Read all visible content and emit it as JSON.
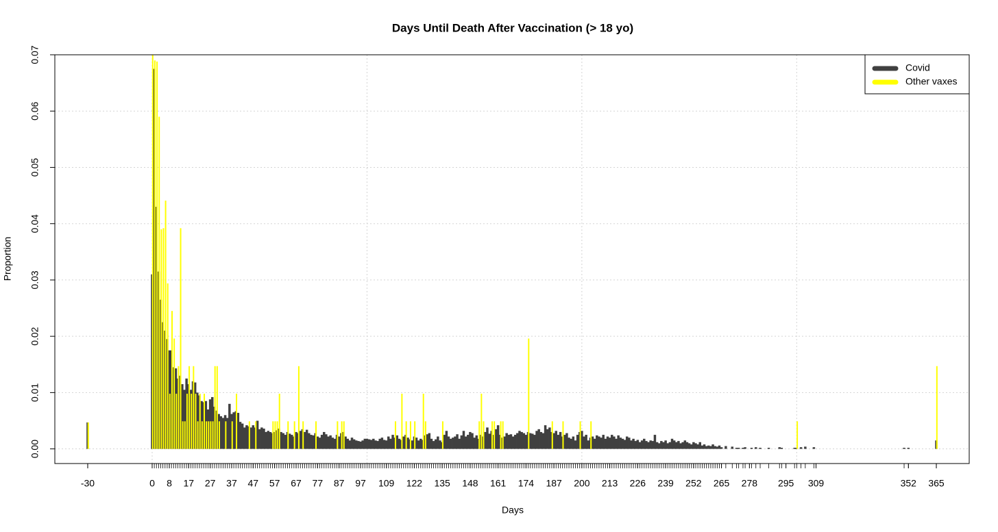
{
  "chart_data": {
    "type": "bar",
    "title": "Days Until Death After Vaccination (> 18 yo)",
    "x_label": "Days",
    "y_label": "Proportion",
    "xlim": [
      -45.3,
      380.3
    ],
    "ylim": [
      -0.0026,
      0.07
    ],
    "xticks": [
      -30,
      0,
      8,
      17,
      27,
      37,
      47,
      57,
      67,
      77,
      87,
      97,
      109,
      122,
      135,
      148,
      161,
      174,
      187,
      200,
      213,
      226,
      239,
      252,
      265,
      278,
      295,
      309,
      352,
      365
    ],
    "yticks": [
      {
        "value": 0,
        "label": "0.00"
      },
      {
        "value": 0.01,
        "label": "0.01"
      },
      {
        "value": 0.02,
        "label": "0.02"
      },
      {
        "value": 0.03,
        "label": "0.03"
      },
      {
        "value": 0.04,
        "label": "0.04"
      },
      {
        "value": 0.05,
        "label": "0.05"
      },
      {
        "value": 0.06,
        "label": "0.06"
      },
      {
        "value": 0.07,
        "label": "0.07"
      }
    ],
    "xgrid": [
      0,
      100,
      200,
      300
    ],
    "grid": true,
    "legend": "top-right",
    "series": [
      {
        "name": "Covid",
        "color": "#404040",
        "x": [
          -30,
          0,
          1,
          2,
          3,
          4,
          5,
          6,
          7,
          8,
          9,
          10,
          11,
          12,
          13,
          14,
          15,
          16,
          17,
          18,
          19,
          20,
          21,
          22,
          23,
          24,
          25,
          26,
          27,
          28,
          29,
          30,
          31,
          32,
          33,
          34,
          35,
          36,
          37,
          38,
          39,
          40,
          41,
          42,
          43,
          44,
          45,
          46,
          47,
          48,
          49,
          50,
          51,
          52,
          53,
          54,
          55,
          56,
          57,
          58,
          59,
          60,
          61,
          62,
          63,
          64,
          65,
          66,
          67,
          68,
          69,
          70,
          71,
          72,
          73,
          74,
          75,
          76,
          77,
          78,
          79,
          80,
          81,
          82,
          83,
          84,
          85,
          86,
          87,
          88,
          89,
          90,
          91,
          92,
          93,
          94,
          95,
          96,
          97,
          98,
          99,
          100,
          101,
          102,
          103,
          104,
          105,
          106,
          107,
          108,
          109,
          110,
          111,
          112,
          113,
          114,
          115,
          116,
          117,
          118,
          119,
          120,
          121,
          122,
          123,
          124,
          125,
          126,
          127,
          128,
          129,
          130,
          131,
          132,
          133,
          134,
          135,
          136,
          137,
          138,
          139,
          140,
          141,
          142,
          143,
          144,
          145,
          146,
          147,
          148,
          149,
          150,
          151,
          152,
          153,
          154,
          155,
          156,
          157,
          158,
          159,
          160,
          161,
          162,
          163,
          164,
          165,
          166,
          167,
          168,
          169,
          170,
          171,
          172,
          173,
          174,
          175,
          176,
          177,
          178,
          179,
          180,
          181,
          182,
          183,
          184,
          185,
          186,
          187,
          188,
          189,
          190,
          191,
          192,
          193,
          194,
          195,
          196,
          197,
          198,
          199,
          200,
          201,
          202,
          203,
          204,
          205,
          206,
          207,
          208,
          209,
          210,
          211,
          212,
          213,
          214,
          215,
          216,
          217,
          218,
          219,
          220,
          221,
          222,
          223,
          224,
          225,
          226,
          227,
          228,
          229,
          230,
          231,
          232,
          233,
          234,
          235,
          236,
          237,
          238,
          239,
          240,
          241,
          242,
          243,
          244,
          245,
          246,
          247,
          248,
          249,
          250,
          251,
          252,
          253,
          254,
          255,
          256,
          257,
          258,
          259,
          260,
          261,
          262,
          263,
          264,
          265,
          267,
          270,
          272,
          273,
          275,
          276,
          279,
          281,
          283,
          287,
          292,
          293,
          299,
          300,
          302,
          304,
          308,
          350,
          352,
          365
        ],
        "values": [
          0.0047,
          0.031,
          0.0675,
          0.043,
          0.0315,
          0.0265,
          0.0225,
          0.021,
          0.0195,
          0.0175,
          0.0175,
          0.0145,
          0.0143,
          0.0125,
          0.013,
          0.0115,
          0.0105,
          0.0125,
          0.0115,
          0.0105,
          0.012,
          0.0118,
          0.01,
          0.0095,
          0.0085,
          0.0083,
          0.0085,
          0.007,
          0.0088,
          0.0092,
          0.0075,
          0.0068,
          0.0062,
          0.0058,
          0.0055,
          0.006,
          0.0055,
          0.008,
          0.0062,
          0.0065,
          0.0067,
          0.0064,
          0.0048,
          0.0045,
          0.0038,
          0.0042,
          0.004,
          0.0038,
          0.0042,
          0.0038,
          0.005,
          0.0035,
          0.0038,
          0.0036,
          0.003,
          0.0032,
          0.003,
          0.0028,
          0.003,
          0.0033,
          0.0036,
          0.003,
          0.0028,
          0.0025,
          0.003,
          0.0027,
          0.0025,
          0.0022,
          0.003,
          0.0028,
          0.0032,
          0.0035,
          0.003,
          0.0034,
          0.0028,
          0.0025,
          0.0024,
          0.0028,
          0.0022,
          0.002,
          0.0025,
          0.003,
          0.0026,
          0.0022,
          0.0024,
          0.002,
          0.0018,
          0.0025,
          0.0022,
          0.0028,
          0.003,
          0.0022,
          0.0018,
          0.0015,
          0.002,
          0.0017,
          0.0015,
          0.0014,
          0.0013,
          0.0015,
          0.0018,
          0.0018,
          0.0017,
          0.0016,
          0.0018,
          0.0015,
          0.0014,
          0.0018,
          0.002,
          0.0016,
          0.0015,
          0.0022,
          0.0018,
          0.0025,
          0.002,
          0.0024,
          0.0018,
          0.0016,
          0.0022,
          0.0025,
          0.002,
          0.0017,
          0.0015,
          0.0022,
          0.002,
          0.0015,
          0.0018,
          0.0016,
          0.0024,
          0.0026,
          0.0028,
          0.0018,
          0.0014,
          0.0017,
          0.0022,
          0.0015,
          0.0012,
          0.0025,
          0.0032,
          0.0022,
          0.0018,
          0.002,
          0.0022,
          0.0026,
          0.0018,
          0.0024,
          0.0032,
          0.0022,
          0.0025,
          0.003,
          0.0028,
          0.002,
          0.0024,
          0.0018,
          0.0025,
          0.0022,
          0.003,
          0.0038,
          0.0027,
          0.0032,
          0.0025,
          0.0035,
          0.0042,
          0.0025,
          0.002,
          0.0022,
          0.0028,
          0.0025,
          0.0026,
          0.0022,
          0.0025,
          0.0028,
          0.0032,
          0.003,
          0.0028,
          0.0025,
          0.003,
          0.0028,
          0.0027,
          0.0025,
          0.0032,
          0.0035,
          0.003,
          0.0028,
          0.0042,
          0.0035,
          0.0038,
          0.003,
          0.0028,
          0.0032,
          0.0025,
          0.003,
          0.0022,
          0.0025,
          0.0028,
          0.002,
          0.0018,
          0.0022,
          0.0015,
          0.0025,
          0.003,
          0.0032,
          0.0022,
          0.0025,
          0.0015,
          0.002,
          0.0022,
          0.0018,
          0.0024,
          0.0022,
          0.002,
          0.0025,
          0.0018,
          0.0022,
          0.002,
          0.0025,
          0.0022,
          0.0018,
          0.0024,
          0.002,
          0.0018,
          0.0016,
          0.0022,
          0.002,
          0.0015,
          0.0018,
          0.0014,
          0.0016,
          0.0012,
          0.0015,
          0.0018,
          0.0014,
          0.0012,
          0.0015,
          0.0014,
          0.0025,
          0.0012,
          0.001,
          0.0014,
          0.0012,
          0.0015,
          0.001,
          0.0012,
          0.0018,
          0.0015,
          0.0012,
          0.0014,
          0.001,
          0.0012,
          0.0015,
          0.0012,
          0.001,
          0.0008,
          0.0012,
          0.001,
          0.0008,
          0.0012,
          0.0006,
          0.0008,
          0.0005,
          0.0006,
          0.0005,
          0.0008,
          0.0005,
          0.0004,
          0.0006,
          0.0003,
          0.0005,
          0.0004,
          0.0002,
          0.0002,
          0.0002,
          0.0003,
          0.0002,
          0.0003,
          0.0002,
          0.0002,
          0.0003,
          0.0002,
          0.0002,
          0.0002,
          0.0003,
          0.0004,
          0.0003,
          0.0002,
          0.0002,
          0.0015
        ]
      },
      {
        "name": "Other vaxes",
        "color": "#ffff00",
        "x": [
          -30,
          0,
          1,
          2,
          3,
          4,
          5,
          6,
          7,
          8,
          9,
          10,
          11,
          12,
          13,
          14,
          15,
          16,
          17,
          18,
          19,
          20,
          21,
          22,
          23,
          24,
          25,
          26,
          27,
          28,
          29,
          30,
          31,
          34,
          37,
          39,
          45,
          48,
          56,
          57,
          58,
          59,
          63,
          66,
          68,
          70,
          76,
          86,
          88,
          89,
          113,
          116,
          118,
          120,
          122,
          126,
          127,
          135,
          152,
          153,
          154,
          158,
          159,
          162,
          163,
          175,
          186,
          191,
          199,
          204,
          300,
          365
        ],
        "values": [
          0.0047,
          0.07,
          0.069,
          0.0688,
          0.059,
          0.039,
          0.0392,
          0.0441,
          0.0294,
          0.0098,
          0.0245,
          0.0196,
          0.0098,
          0.0147,
          0.0392,
          0.0049,
          0.0049,
          0.0098,
          0.0147,
          0.0098,
          0.0147,
          0.0098,
          0.0049,
          0.0098,
          0.0049,
          0.0098,
          0.0049,
          0.0049,
          0.0049,
          0.0049,
          0.0147,
          0.0147,
          0.0049,
          0.0049,
          0.0049,
          0.0098,
          0.0049,
          0.0049,
          0.0049,
          0.0049,
          0.0049,
          0.0098,
          0.0049,
          0.0049,
          0.0147,
          0.0049,
          0.0049,
          0.0049,
          0.0049,
          0.0049,
          0.0049,
          0.0098,
          0.0049,
          0.0049,
          0.0049,
          0.0098,
          0.0049,
          0.0049,
          0.0049,
          0.0098,
          0.0049,
          0.0049,
          0.0049,
          0.0049,
          0.0049,
          0.0196,
          0.0049,
          0.0049,
          0.0049,
          0.0049,
          0.0049,
          0.0147
        ]
      }
    ]
  }
}
